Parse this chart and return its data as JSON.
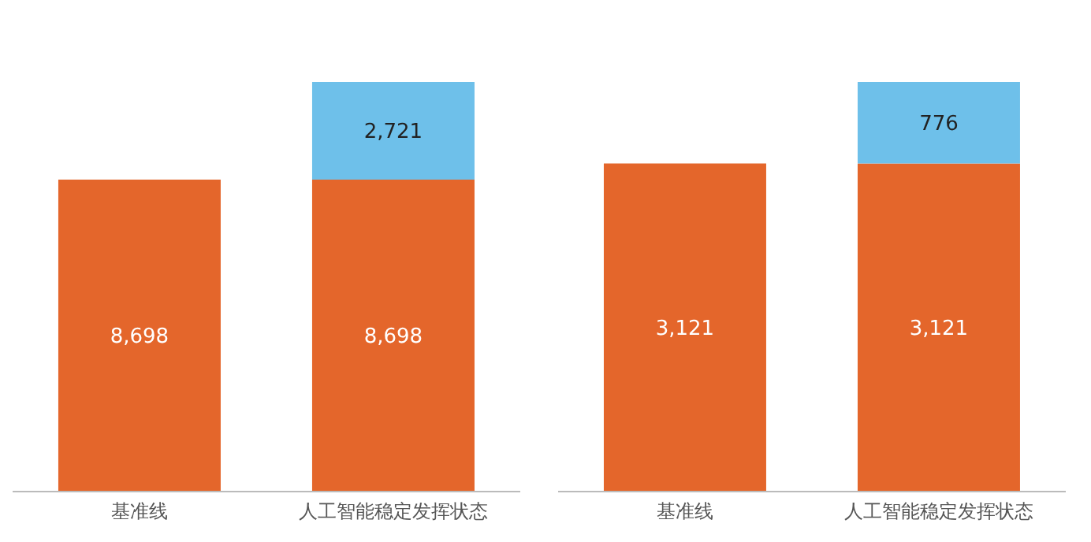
{
  "chart_data": [
    {
      "type": "bar",
      "stacked": true,
      "categories": [
        "基准线",
        "人工智能稳定发挥状态"
      ],
      "series": [
        {
          "color": "#e4662b",
          "values": [
            8698,
            8698
          ],
          "value_labels": [
            "8,698",
            "8,698"
          ]
        },
        {
          "color": "#6ec0ea",
          "values": [
            null,
            2721
          ],
          "value_labels": [
            null,
            "2,721"
          ]
        }
      ]
    },
    {
      "type": "bar",
      "stacked": true,
      "categories": [
        "基准线",
        "人工智能稳定发挥状态"
      ],
      "series": [
        {
          "color": "#e4662b",
          "values": [
            3121,
            3121
          ],
          "value_labels": [
            "3,121",
            "3,121"
          ]
        },
        {
          "color": "#6ec0ea",
          "values": [
            null,
            776
          ],
          "value_labels": [
            null,
            "776"
          ]
        }
      ]
    }
  ]
}
